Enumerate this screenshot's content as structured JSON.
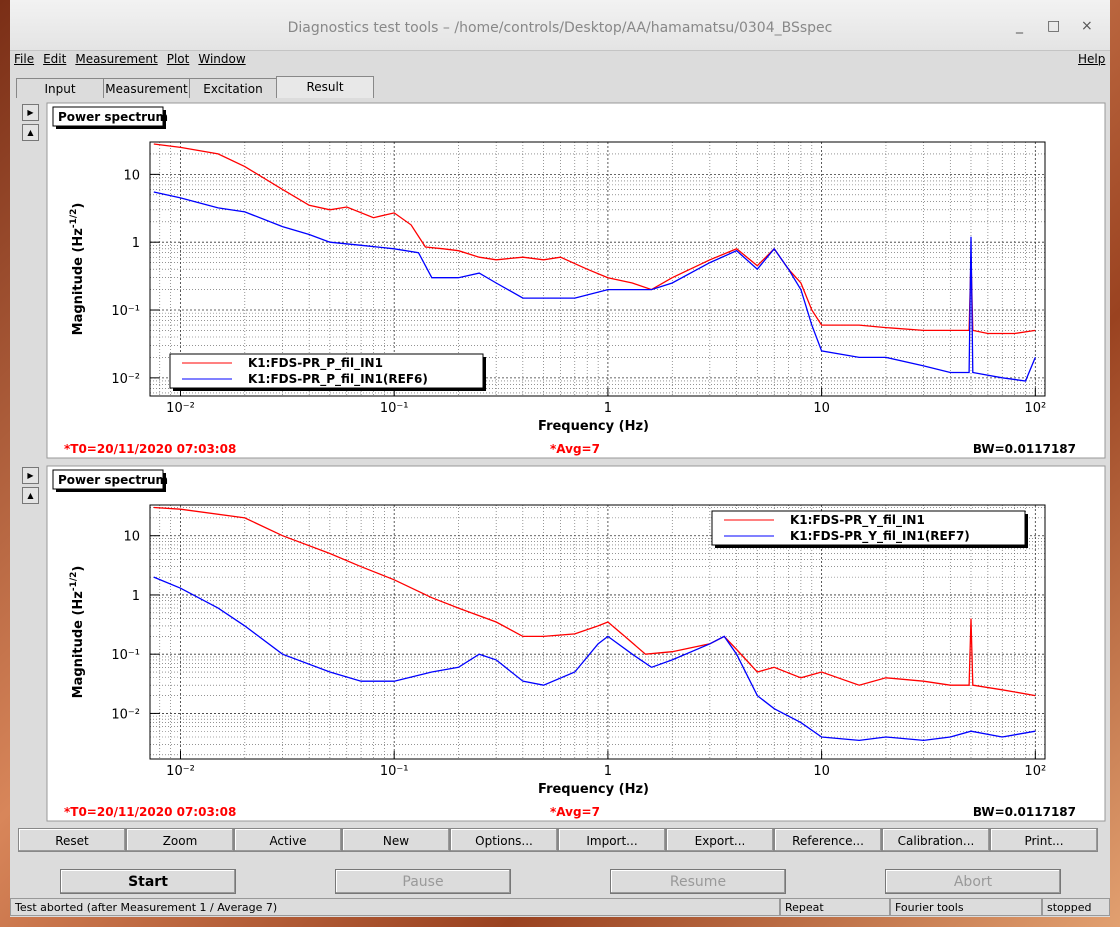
{
  "window": {
    "title": "Diagnostics test tools – /home/controls/Desktop/AA/hamamatsu/0304_BSspec"
  },
  "menu": [
    "File",
    "Edit",
    "Measurement",
    "Plot",
    "Window"
  ],
  "help_menu": "Help",
  "tabs": [
    "Input",
    "Measurement",
    "Excitation",
    "Result"
  ],
  "chart_data": [
    {
      "type": "line",
      "title": "Power spectrum",
      "x_label": "Frequency (Hz)",
      "y_label": "Magnitude (Hz",
      "y_label_exp": "-1/2",
      "y_label_end": ")",
      "log_x": true,
      "log_y": true,
      "grid": true,
      "legend": "lower left",
      "xlim": [
        0.0072,
        111
      ],
      "ylim": [
        0.0054,
        30
      ],
      "xticks": [
        {
          "value": 0.01,
          "label": "10⁻²"
        },
        {
          "value": 0.1,
          "label": "10⁻¹"
        },
        1,
        10,
        {
          "value": 100,
          "label": "10²"
        }
      ],
      "yticks": [
        {
          "value": 0.01,
          "label": "10⁻²"
        },
        {
          "value": 0.1,
          "label": "10⁻¹"
        },
        1,
        10
      ],
      "series": [
        {
          "name": "K1:FDS-PR_P_fil_IN1",
          "color": "#ff0000",
          "x": [
            0.0075,
            0.01,
            0.015,
            0.02,
            0.03,
            0.04,
            0.05,
            0.06,
            0.08,
            0.1,
            0.12,
            0.14,
            0.17,
            0.2,
            0.25,
            0.3,
            0.4,
            0.5,
            0.6,
            0.8,
            1,
            1.3,
            1.6,
            2,
            3,
            4,
            5,
            6,
            7,
            8,
            9,
            10,
            15,
            20,
            30,
            40,
            49,
            50,
            51,
            60,
            80,
            100
          ],
          "values": [
            28,
            25,
            20,
            13,
            6,
            3.5,
            3,
            3.3,
            2.3,
            2.7,
            1.8,
            0.85,
            0.8,
            0.75,
            0.6,
            0.55,
            0.6,
            0.55,
            0.6,
            0.4,
            0.3,
            0.25,
            0.2,
            0.3,
            0.55,
            0.8,
            0.45,
            0.8,
            0.4,
            0.25,
            0.1,
            0.06,
            0.06,
            0.055,
            0.05,
            0.05,
            0.05,
            0.6,
            0.05,
            0.045,
            0.045,
            0.05
          ]
        },
        {
          "name": "K1:FDS-PR_P_fil_IN1(REF6)",
          "color": "#0000ff",
          "x": [
            0.0075,
            0.01,
            0.015,
            0.02,
            0.03,
            0.04,
            0.05,
            0.07,
            0.1,
            0.13,
            0.15,
            0.2,
            0.25,
            0.3,
            0.4,
            0.5,
            0.7,
            1,
            1.3,
            1.6,
            2,
            3,
            4,
            5,
            6,
            7,
            8,
            9,
            10,
            15,
            20,
            30,
            40,
            49,
            50,
            51,
            70,
            90,
            100
          ],
          "values": [
            5.5,
            4.5,
            3.2,
            2.8,
            1.7,
            1.3,
            1.0,
            0.9,
            0.8,
            0.7,
            0.3,
            0.3,
            0.35,
            0.25,
            0.15,
            0.15,
            0.15,
            0.2,
            0.2,
            0.2,
            0.25,
            0.5,
            0.75,
            0.4,
            0.8,
            0.4,
            0.2,
            0.06,
            0.025,
            0.02,
            0.02,
            0.015,
            0.012,
            0.012,
            1.2,
            0.012,
            0.01,
            0.009,
            0.02
          ]
        }
      ],
      "t0": "*T0=20/11/2020 07:03:08",
      "avg": "*Avg=7",
      "bw": "BW=0.0117187"
    },
    {
      "type": "line",
      "title": "Power spectrum",
      "x_label": "Frequency (Hz)",
      "y_label": "Magnitude (Hz",
      "y_label_exp": "-1/2",
      "y_label_end": ")",
      "log_x": true,
      "log_y": true,
      "grid": true,
      "legend": "upper right",
      "xlim": [
        0.0072,
        111
      ],
      "ylim": [
        0.0017,
        33
      ],
      "xticks": [
        {
          "value": 0.01,
          "label": "10⁻²"
        },
        {
          "value": 0.1,
          "label": "10⁻¹"
        },
        1,
        10,
        {
          "value": 100,
          "label": "10²"
        }
      ],
      "yticks": [
        {
          "value": 0.01,
          "label": "10⁻²"
        },
        {
          "value": 0.1,
          "label": "10⁻¹"
        },
        1,
        10
      ],
      "series": [
        {
          "name": "K1:FDS-PR_Y_fil_IN1",
          "color": "#ff0000",
          "x": [
            0.0075,
            0.01,
            0.02,
            0.03,
            0.05,
            0.07,
            0.1,
            0.15,
            0.2,
            0.3,
            0.4,
            0.5,
            0.7,
            0.9,
            1,
            1.2,
            1.5,
            2,
            3,
            3.5,
            4,
            5,
            6,
            8,
            10,
            15,
            20,
            30,
            40,
            49,
            50,
            51,
            70,
            100
          ],
          "values": [
            30,
            28,
            20,
            10,
            5,
            3,
            1.8,
            0.9,
            0.6,
            0.35,
            0.2,
            0.2,
            0.22,
            0.3,
            0.35,
            0.2,
            0.1,
            0.11,
            0.15,
            0.2,
            0.12,
            0.05,
            0.06,
            0.04,
            0.05,
            0.03,
            0.04,
            0.035,
            0.03,
            0.03,
            0.4,
            0.03,
            0.025,
            0.02
          ]
        },
        {
          "name": "K1:FDS-PR_Y_fil_IN1(REF7)",
          "color": "#0000ff",
          "x": [
            0.0075,
            0.01,
            0.015,
            0.02,
            0.03,
            0.05,
            0.07,
            0.1,
            0.15,
            0.2,
            0.25,
            0.3,
            0.4,
            0.5,
            0.7,
            0.9,
            1,
            1.3,
            1.6,
            2,
            3,
            3.5,
            4,
            5,
            6,
            8,
            10,
            15,
            20,
            30,
            40,
            50,
            70,
            100
          ],
          "values": [
            2,
            1.3,
            0.6,
            0.3,
            0.1,
            0.05,
            0.035,
            0.035,
            0.05,
            0.06,
            0.1,
            0.08,
            0.035,
            0.03,
            0.05,
            0.15,
            0.2,
            0.1,
            0.06,
            0.08,
            0.15,
            0.2,
            0.1,
            0.02,
            0.012,
            0.007,
            0.004,
            0.0035,
            0.004,
            0.0035,
            0.004,
            0.005,
            0.004,
            0.005
          ]
        }
      ],
      "t0": "*T0=20/11/2020 07:03:08",
      "avg": "*Avg=7",
      "bw": "BW=0.0117187"
    }
  ],
  "toolbar": [
    "Reset",
    "Zoom",
    "Active",
    "New",
    "Options...",
    "Import...",
    "Export...",
    "Reference...",
    "Calibration...",
    "Print..."
  ],
  "controls": [
    "Start",
    "Pause",
    "Resume",
    "Abort"
  ],
  "status": [
    "Test aborted (after Measurement 1 / Average 7)",
    "Repeat",
    "Fourier tools",
    "stopped"
  ]
}
